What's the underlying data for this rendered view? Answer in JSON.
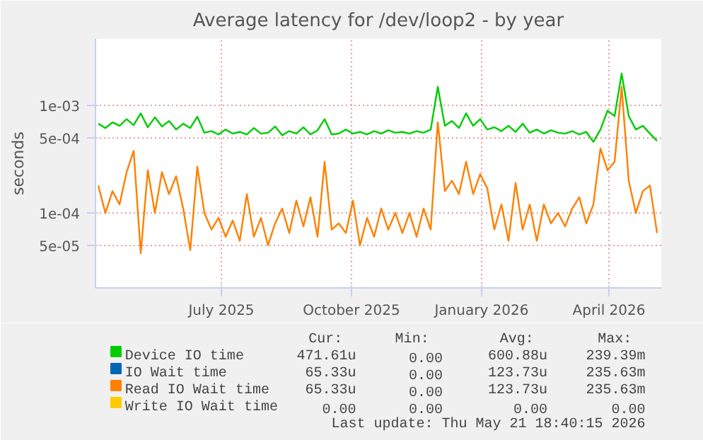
{
  "chart_data": {
    "type": "line",
    "title": "Average latency for /dev/loop2 - by year",
    "ylabel": "seconds",
    "x": [
      "2025-04-20",
      "2025-04-25",
      "2025-04-30",
      "2025-05-05",
      "2025-05-10",
      "2025-05-15",
      "2025-05-20",
      "2025-05-25",
      "2025-05-30",
      "2025-06-04",
      "2025-06-09",
      "2025-06-14",
      "2025-06-19",
      "2025-06-24",
      "2025-06-29",
      "2025-07-04",
      "2025-07-09",
      "2025-07-14",
      "2025-07-19",
      "2025-07-24",
      "2025-07-29",
      "2025-08-03",
      "2025-08-08",
      "2025-08-13",
      "2025-08-18",
      "2025-08-23",
      "2025-08-28",
      "2025-09-02",
      "2025-09-07",
      "2025-09-12",
      "2025-09-17",
      "2025-09-22",
      "2025-09-27",
      "2025-10-02",
      "2025-10-07",
      "2025-10-12",
      "2025-10-17",
      "2025-10-22",
      "2025-10-27",
      "2025-11-01",
      "2025-11-06",
      "2025-11-11",
      "2025-11-16",
      "2025-11-21",
      "2025-11-26",
      "2025-12-01",
      "2025-12-06",
      "2025-12-11",
      "2025-12-16",
      "2025-12-21",
      "2025-12-26",
      "2025-12-31",
      "2026-01-05",
      "2026-01-10",
      "2026-01-15",
      "2026-01-20",
      "2026-01-25",
      "2026-01-30",
      "2026-02-04",
      "2026-02-09",
      "2026-02-14",
      "2026-02-19",
      "2026-02-24",
      "2026-03-01",
      "2026-03-06",
      "2026-03-11",
      "2026-03-16",
      "2026-03-21",
      "2026-03-26",
      "2026-03-31",
      "2026-04-05",
      "2026-04-10",
      "2026-04-15",
      "2026-04-20",
      "2026-04-25",
      "2026-04-30",
      "2026-05-05",
      "2026-05-10",
      "2026-05-15",
      "2026-05-20"
    ],
    "series": [
      {
        "name": "Device IO time",
        "color": "#00cc00",
        "values": [
          0.00068,
          0.00062,
          0.0007,
          0.00065,
          0.00075,
          0.00066,
          0.00085,
          0.00063,
          0.00078,
          0.00064,
          0.00072,
          0.0006,
          0.00068,
          0.00062,
          0.00079,
          0.00056,
          0.00058,
          0.00054,
          0.0006,
          0.00055,
          0.00057,
          0.00054,
          0.00062,
          0.00055,
          0.00056,
          0.00064,
          0.00053,
          0.00058,
          0.00055,
          0.00063,
          0.00054,
          0.00059,
          0.00075,
          0.00054,
          0.00055,
          0.0006,
          0.00055,
          0.00057,
          0.00054,
          0.00058,
          0.00055,
          0.00059,
          0.00056,
          0.00057,
          0.00055,
          0.00058,
          0.00056,
          0.0006,
          0.0015,
          0.00065,
          0.00072,
          0.00062,
          0.00085,
          0.00065,
          0.00075,
          0.0006,
          0.00063,
          0.00058,
          0.00065,
          0.00057,
          0.00068,
          0.00056,
          0.0006,
          0.00055,
          0.00059,
          0.00056,
          0.00055,
          0.00058,
          0.00054,
          0.00057,
          0.00046,
          0.0006,
          0.0009,
          0.0008,
          0.002,
          0.0008,
          0.0006,
          0.00065,
          0.00055,
          0.00047
        ]
      },
      {
        "name": "IO Wait time",
        "color": "#0066b3",
        "values": [
          null,
          null,
          null,
          null,
          null,
          null,
          null,
          null,
          null,
          null,
          null,
          null,
          null,
          null,
          null,
          null,
          null,
          null,
          null,
          null,
          null,
          null,
          null,
          null,
          null,
          null,
          null,
          null,
          null,
          null,
          null,
          null,
          null,
          null,
          null,
          null,
          null,
          null,
          null,
          null,
          null,
          null,
          null,
          null,
          null,
          null,
          null,
          null,
          null,
          null,
          null,
          null,
          null,
          null,
          null,
          null,
          null,
          null,
          null,
          null,
          null,
          null,
          null,
          null,
          null,
          null,
          null,
          null,
          null,
          null,
          null,
          null,
          null,
          null,
          null,
          null,
          null,
          null,
          null,
          null
        ]
      },
      {
        "name": "Read IO Wait time",
        "color": "#ff8000",
        "values": [
          0.00018,
          0.0001,
          0.00016,
          0.00012,
          0.00024,
          0.00038,
          4.2e-05,
          0.00025,
          0.0001,
          0.00024,
          0.00015,
          0.00022,
          0.00011,
          4.5e-05,
          0.00027,
          0.0001,
          7e-05,
          9e-05,
          6e-05,
          8.5e-05,
          5.5e-05,
          0.00015,
          6e-05,
          9e-05,
          5e-05,
          8e-05,
          0.00011,
          6.5e-05,
          0.00013,
          7.5e-05,
          0.00014,
          6e-05,
          0.0003,
          7e-05,
          8e-05,
          6.5e-05,
          0.00013,
          5e-05,
          9e-05,
          6e-05,
          0.00011,
          7e-05,
          0.0001,
          6.5e-05,
          0.0001,
          6e-05,
          0.00011,
          7e-05,
          0.0007,
          0.00016,
          0.0002,
          0.00015,
          0.0003,
          0.00015,
          0.00023,
          0.00017,
          7e-05,
          0.00012,
          5.5e-05,
          0.00019,
          7e-05,
          0.00012,
          5.5e-05,
          0.00012,
          8e-05,
          0.0001,
          7.5e-05,
          0.00011,
          0.00014,
          8e-05,
          0.00012,
          0.0004,
          0.00025,
          0.0003,
          0.0015,
          0.0002,
          0.0001,
          0.00016,
          0.00018,
          6.5e-05
        ]
      },
      {
        "name": "Write IO Wait time",
        "color": "#ffcc00",
        "values": [
          null,
          null,
          null,
          null,
          null,
          null,
          null,
          null,
          null,
          null,
          null,
          null,
          null,
          null,
          null,
          null,
          null,
          null,
          null,
          null,
          null,
          null,
          null,
          null,
          null,
          null,
          null,
          null,
          null,
          null,
          null,
          null,
          null,
          null,
          null,
          null,
          null,
          null,
          null,
          null,
          null,
          null,
          null,
          null,
          null,
          null,
          null,
          null,
          null,
          null,
          null,
          null,
          null,
          null,
          null,
          null,
          null,
          null,
          null,
          null,
          null,
          null,
          null,
          null,
          null,
          null,
          null,
          null,
          null,
          null,
          null,
          null,
          null,
          null,
          null,
          null,
          null,
          null,
          null,
          null
        ]
      }
    ],
    "log": "y",
    "ylim": [
      2e-05,
      0.0042
    ],
    "yticks": [
      {
        "value": 5e-05,
        "label": "5e-05"
      },
      {
        "value": 0.0001,
        "label": "1e-04"
      },
      {
        "value": 0.0005,
        "label": "5e-04"
      },
      {
        "value": 0.001,
        "label": "1e-03"
      }
    ],
    "xlim": [
      "2025-04-18",
      "2026-05-23"
    ],
    "xticks": [
      {
        "value": "2025-07-16",
        "label": "July 2025"
      },
      {
        "value": "2025-10-16",
        "label": "October 2025"
      },
      {
        "value": "2026-01-16",
        "label": "January 2026"
      },
      {
        "value": "2026-04-16",
        "label": "April 2026"
      }
    ],
    "grid": true,
    "legend": "bottom",
    "annotations": [
      "Cur:",
      "Min:",
      "Avg:",
      "Max:",
      "471.61u",
      "0.00",
      "600.88u",
      "239.39m",
      "65.33u",
      "0.00",
      "123.73u",
      "235.63m",
      "65.33u",
      "0.00",
      "123.73u",
      "235.63m",
      "0.00",
      "0.00",
      "0.00",
      "0.00",
      "Last update: Thu May 21 18:40:15 2026"
    ]
  }
}
